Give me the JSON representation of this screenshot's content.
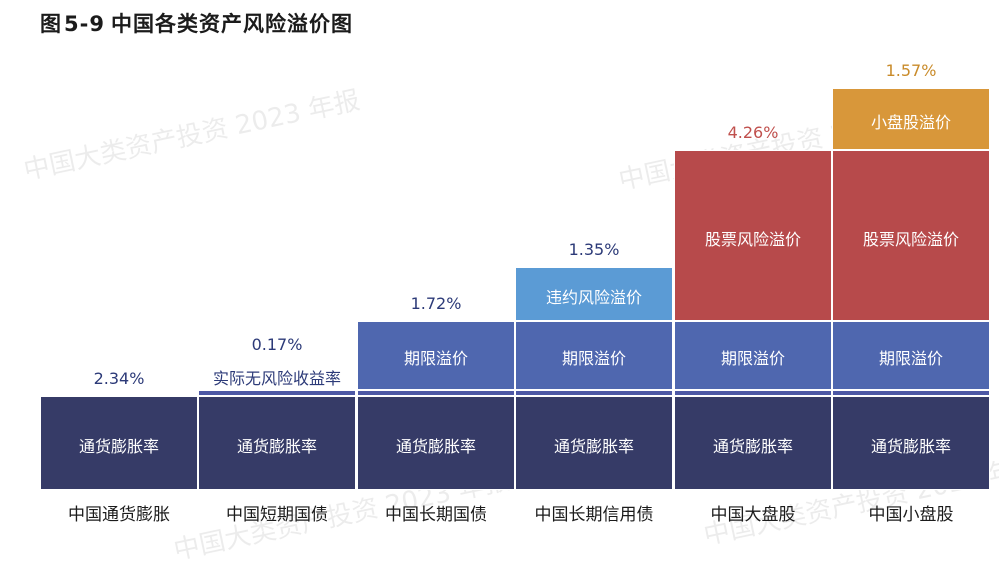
{
  "title": {
    "prefix": "图",
    "number": "5-9",
    "text": "中国各类资产风险溢价图"
  },
  "watermark": "中国大类资产投资 2023 年报",
  "colors": {
    "inflation": "#363b67",
    "real_rate": "#4d58a5",
    "term": "#4f67af",
    "credit": "#5b9bd5",
    "equity": "#b74a4b",
    "small_cap": "#d8973a",
    "value_blue": "#2c3a78",
    "value_red": "#c0504d",
    "value_gold": "#c98b2a"
  },
  "chart_data": {
    "type": "bar",
    "title": "图 5-9 中国各类资产风险溢价图",
    "categories": [
      "中国通货膨胀",
      "中国短期国债",
      "中国长期国债",
      "中国长期信用债",
      "中国大盘股",
      "中国小盘股"
    ],
    "series": [
      {
        "name": "通货膨胀率",
        "values": [
          2.34,
          2.34,
          2.34,
          2.34,
          2.34,
          2.34
        ]
      },
      {
        "name": "实际无风险收益率",
        "values": [
          0,
          0.17,
          0.17,
          0.17,
          0.17,
          0.17
        ]
      },
      {
        "name": "期限溢价",
        "values": [
          0,
          0,
          1.72,
          1.72,
          1.72,
          1.72
        ]
      },
      {
        "name": "违约风险溢价",
        "values": [
          0,
          0,
          0,
          1.35,
          0,
          0
        ]
      },
      {
        "name": "股票风险溢价",
        "values": [
          0,
          0,
          0,
          0,
          4.26,
          4.26
        ]
      },
      {
        "name": "小盘股溢价",
        "values": [
          0,
          0,
          0,
          0,
          0,
          1.57
        ]
      }
    ],
    "value_labels": [
      "2.34%",
      "0.17%",
      "1.72%",
      "1.35%",
      "4.26%",
      "1.57%"
    ],
    "segment_labels": {
      "inflation": "通货膨胀率",
      "real_rate": "实际无风险收益率",
      "term": "期限溢价",
      "credit": "违约风险溢价",
      "equity": "股票风险溢价",
      "small_cap": "小盘股溢价"
    },
    "xlabel": "",
    "ylabel": ""
  }
}
